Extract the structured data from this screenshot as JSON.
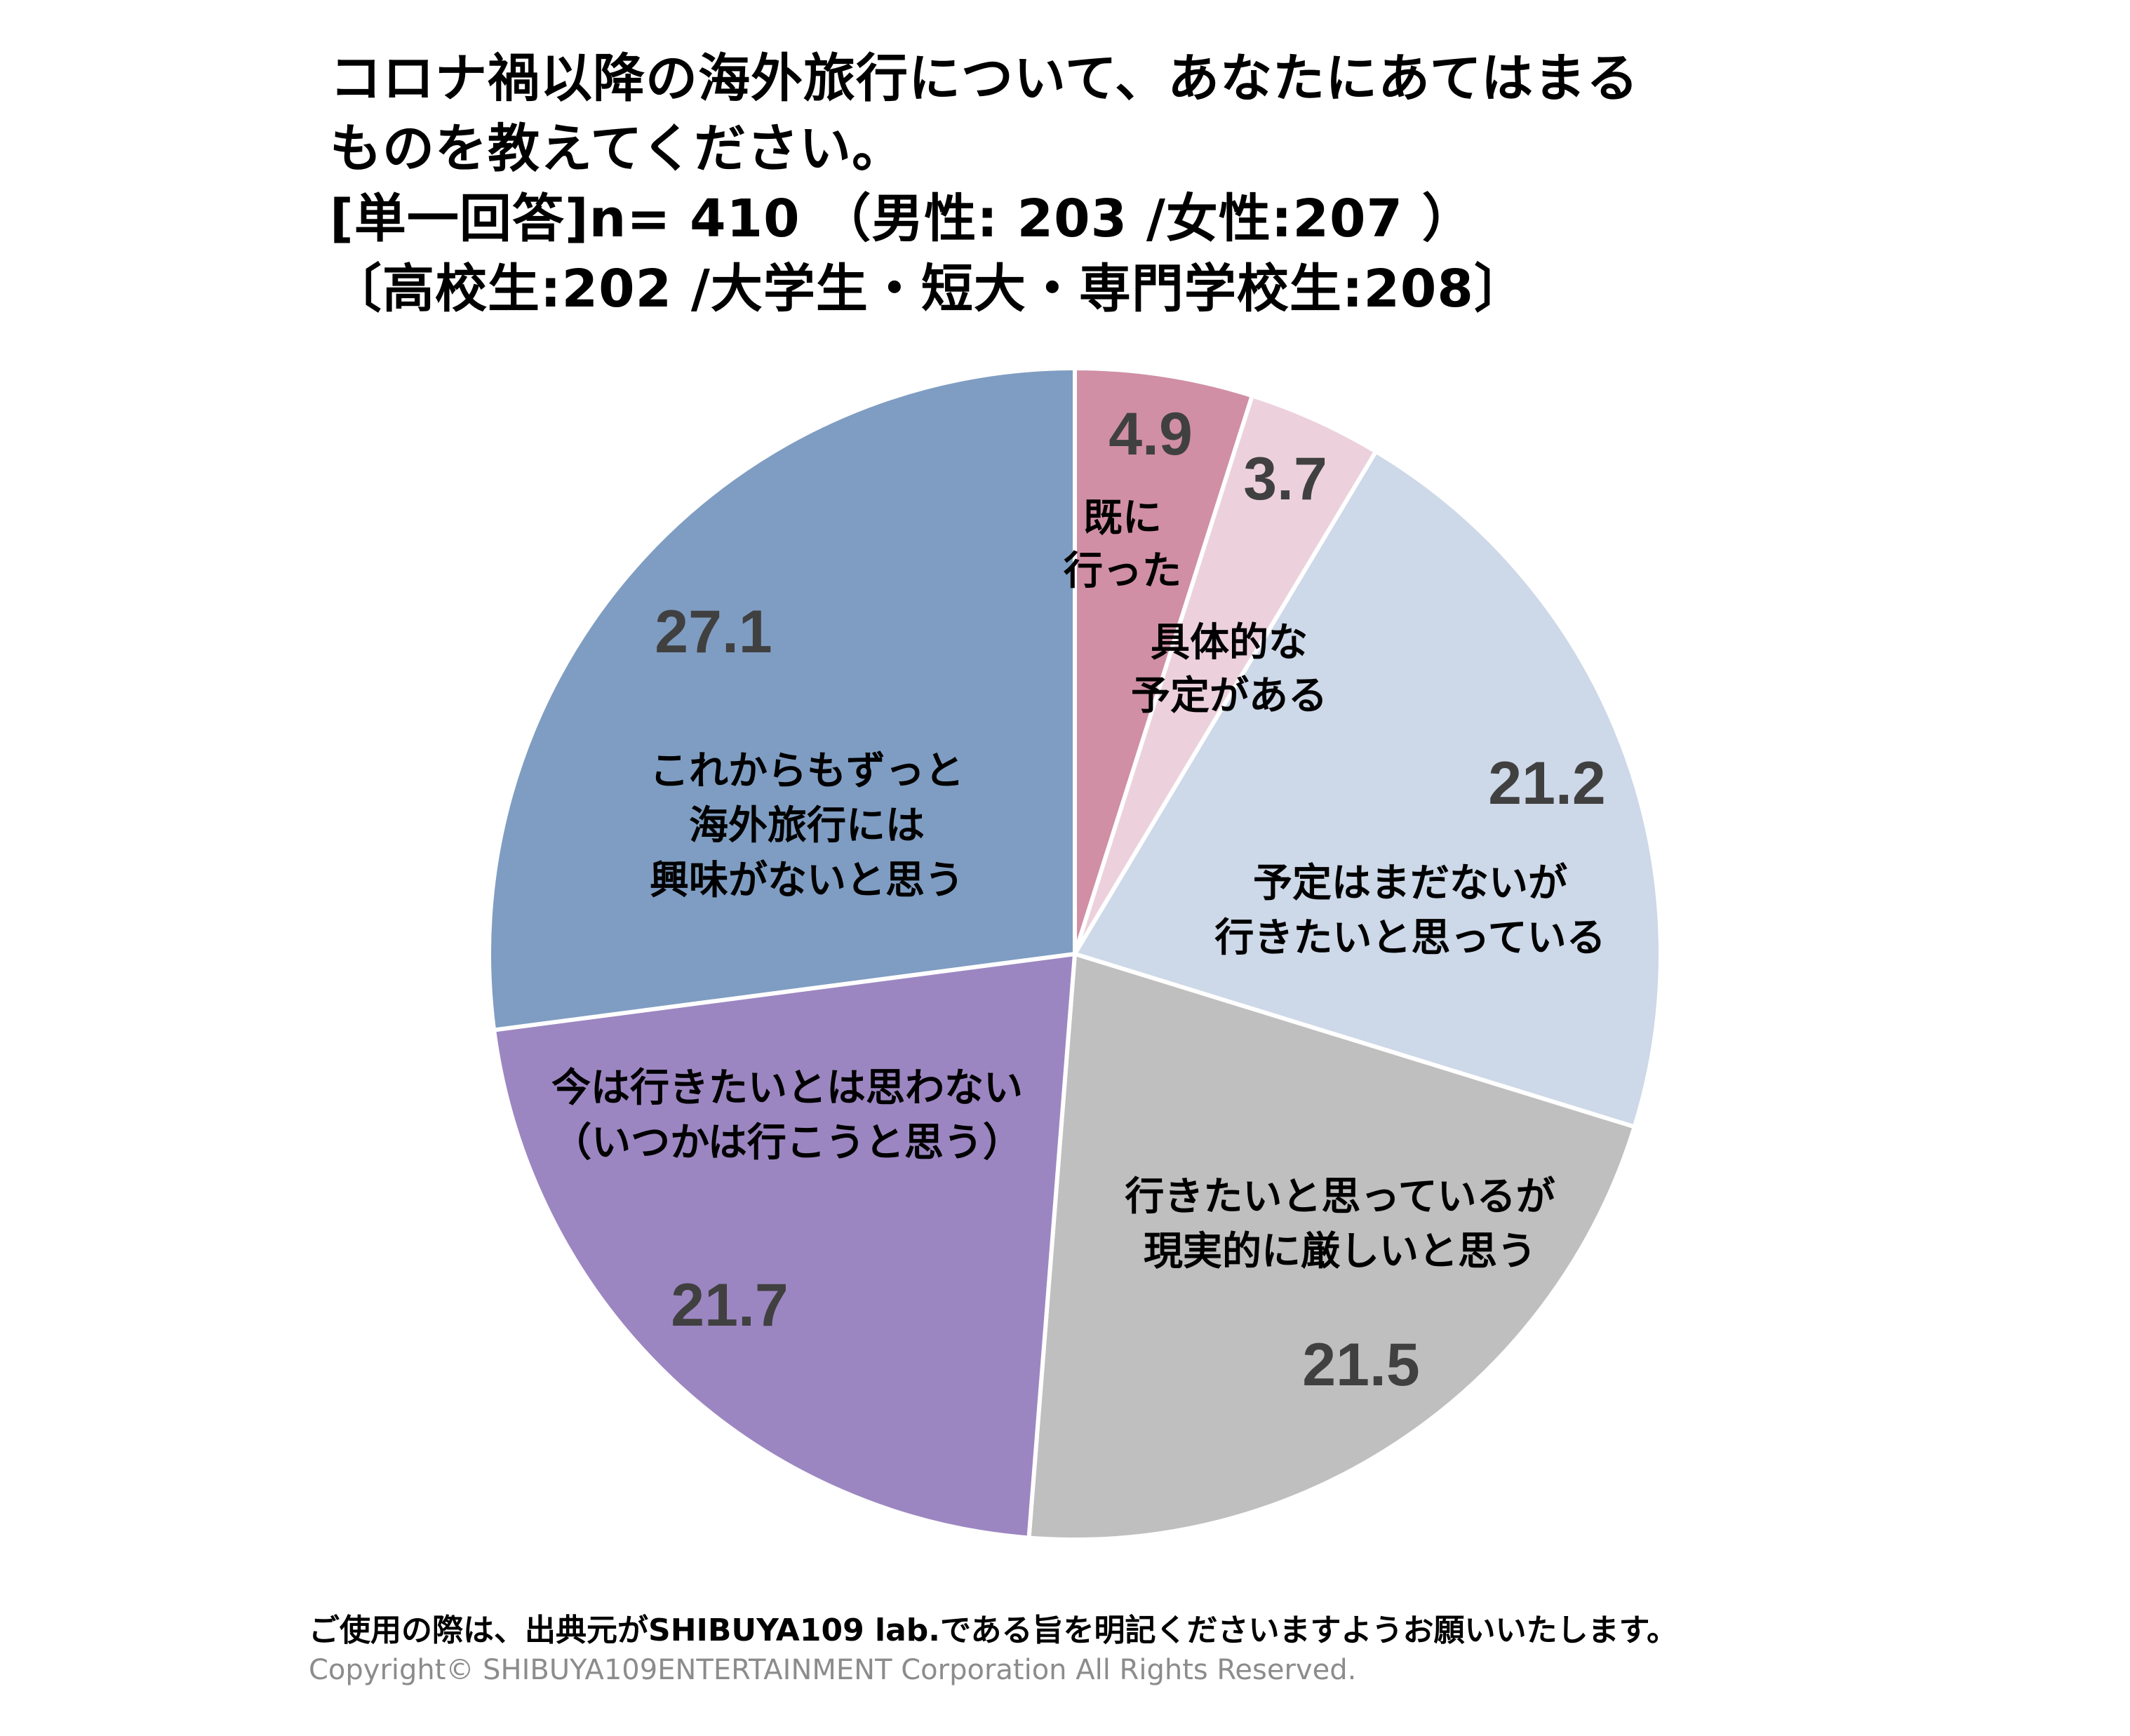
{
  "title": {
    "line1": "コロナ禍以降の海外旅行について、あなたにあてはまる",
    "line2": "ものを教えてください。",
    "line3": "[単一回答]n= 410 （男性: 203 /女性:207 ）",
    "line4": "〔高校生:202 /大学生・短大・専門学校生:208〕"
  },
  "chart_data": {
    "type": "pie",
    "title": "コロナ禍以降の海外旅行について、あなたにあてはまるものを教えてください。",
    "start_angle": "12 o'clock",
    "direction": "clockwise",
    "slices": [
      {
        "label_lines": [
          "既に",
          "行った"
        ],
        "value": 4.9,
        "value_label": "4.9",
        "color": "#d08fa5"
      },
      {
        "label_lines": [
          "具体的な",
          "予定がある"
        ],
        "value": 3.7,
        "value_label": "3.7",
        "color": "#ecd1dc"
      },
      {
        "label_lines": [
          "予定はまだないが",
          "行きたいと思っている"
        ],
        "value": 21.2,
        "value_label": "21.2",
        "color": "#cdd8e8"
      },
      {
        "label_lines": [
          "行きたいと思っているが",
          "現実的に厳しいと思う"
        ],
        "value": 21.5,
        "value_label": "21.5",
        "color": "#bfbfbf"
      },
      {
        "label_lines": [
          "今は行きたいとは思わない",
          "（いつかは行こうと思う）"
        ],
        "value": 21.7,
        "value_label": "21.7",
        "color": "#9c86c1"
      },
      {
        "label_lines": [
          "これからもずっと",
          "海外旅行には",
          "興味がないと思う"
        ],
        "value": 27.1,
        "value_label": "27.1",
        "color": "#7f9dc2"
      }
    ]
  },
  "footer": {
    "note": "ご使用の際は、出典元がSHIBUYA109 lab.である旨を明記くださいますようお願いいたします。",
    "copyright": "Copyright© SHIBUYA109ENTERTAINMENT Corporation All Rights Reserved."
  }
}
